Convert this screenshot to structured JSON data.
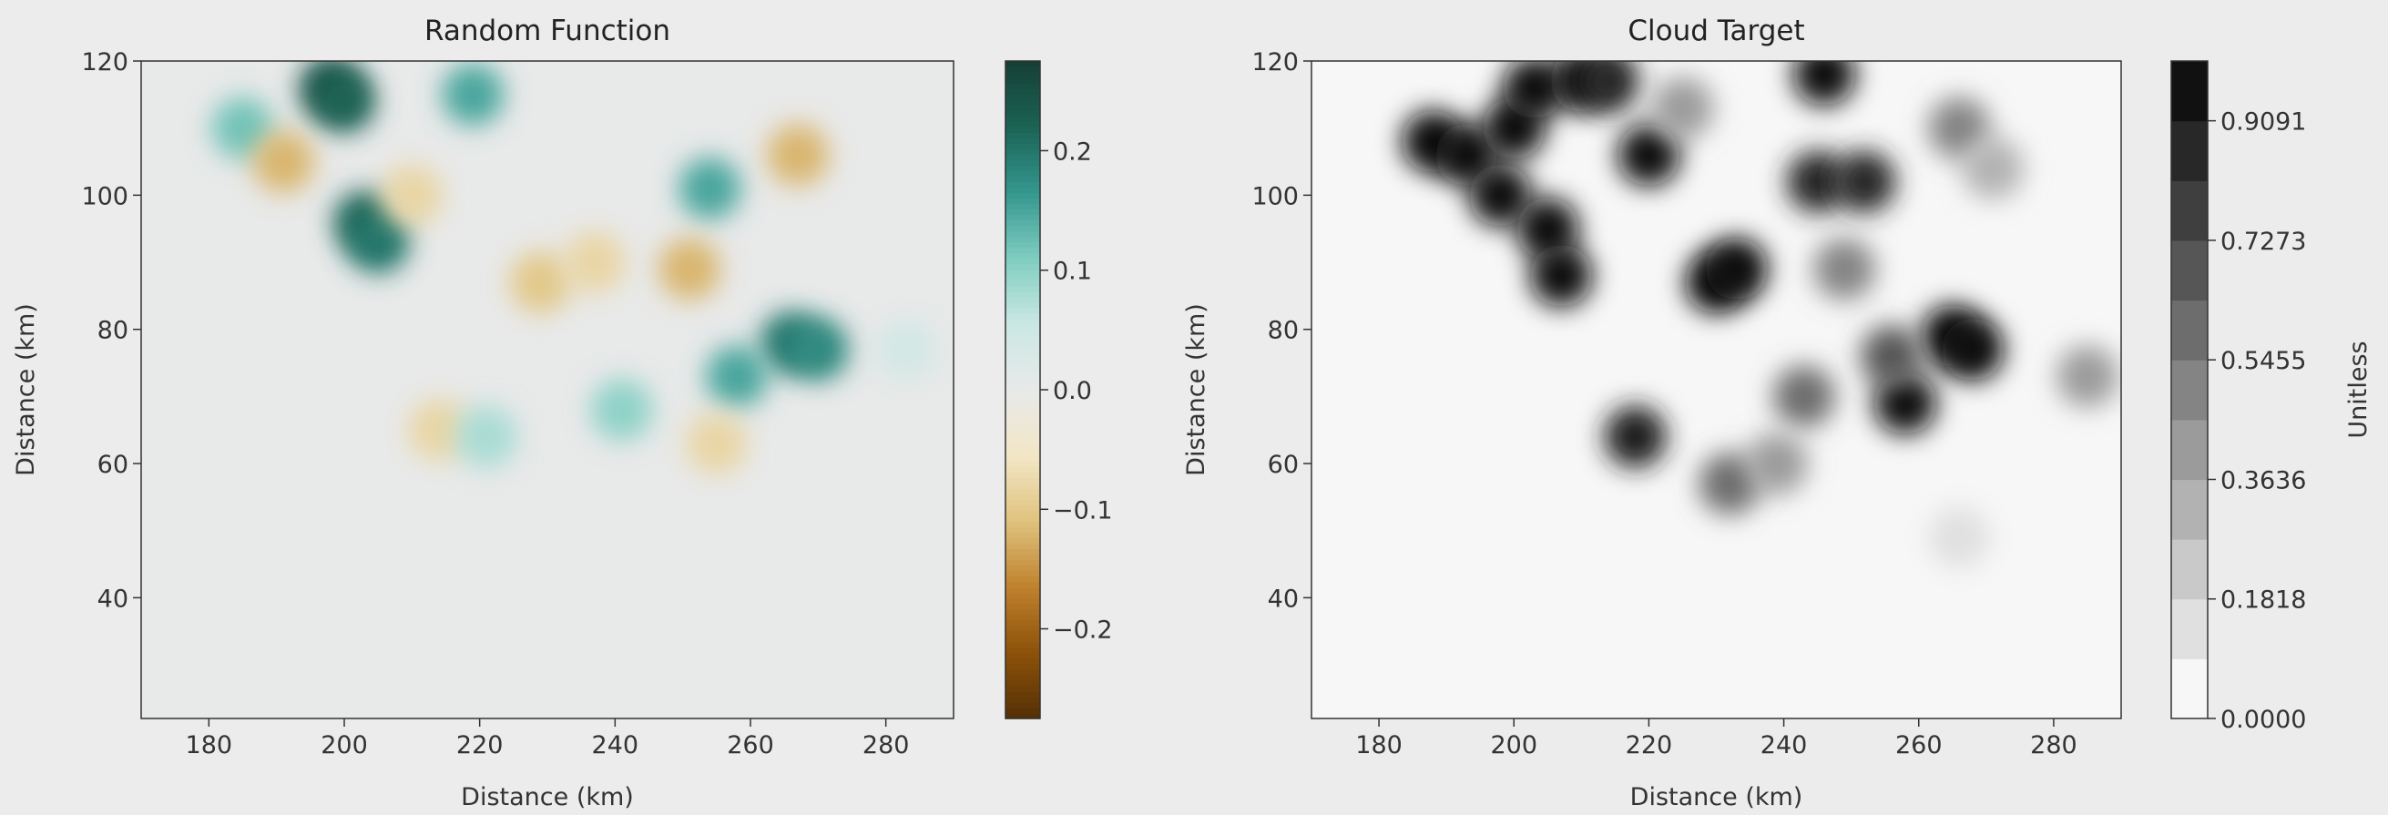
{
  "chart_data": [
    {
      "type": "heatmap",
      "title": "Random Function",
      "xlabel": "Distance (km)",
      "ylabel": "Distance (km)",
      "xlim": [
        170,
        290
      ],
      "ylim": [
        22,
        120
      ],
      "xticks": [
        180,
        200,
        220,
        240,
        260,
        280
      ],
      "yticks": [
        40,
        60,
        80,
        100,
        120
      ],
      "colormap": "BrBG",
      "colorbar": {
        "clim": [
          -0.275,
          0.275
        ],
        "ticks": [
          {
            "value": -0.2,
            "label": "−0.2"
          },
          {
            "value": -0.1,
            "label": "−0.1"
          },
          {
            "value": 0,
            "label": "0.0"
          },
          0.1,
          0.2
        ]
      },
      "points": {
        "x": [
          198,
          200,
          185,
          219,
          203,
          205,
          191,
          210,
          254,
          267,
          229,
          237,
          251,
          266,
          270,
          258,
          214,
          221,
          241,
          255,
          283
        ],
        "y": [
          116,
          114,
          110,
          115,
          96,
          93,
          105,
          100,
          101,
          106,
          87,
          90,
          89,
          78,
          77,
          73,
          65,
          64,
          68,
          63,
          77
        ],
        "values": [
          0.25,
          0.22,
          0.12,
          0.15,
          0.22,
          0.2,
          -0.12,
          -0.08,
          0.15,
          -0.12,
          -0.1,
          -0.08,
          -0.12,
          0.2,
          0.18,
          0.15,
          -0.08,
          0.08,
          0.1,
          -0.08,
          0.04
        ]
      }
    },
    {
      "type": "heatmap",
      "title": "Cloud Target",
      "xlabel": "Distance (km)",
      "ylabel": "Distance (km)",
      "xlim": [
        170,
        290
      ],
      "ylim": [
        22,
        120
      ],
      "xticks": [
        180,
        200,
        220,
        240,
        260,
        280
      ],
      "yticks": [
        40,
        60,
        80,
        100,
        120
      ],
      "colormap": "Greys",
      "colorbar": {
        "label": "Unitless",
        "clim": [
          0,
          1
        ],
        "levels": 11,
        "ticks": [
          {
            "value": 0,
            "label": "0.0000"
          },
          0.1818,
          0.3636,
          0.5455,
          0.7273,
          0.9091
        ]
      },
      "points": {
        "x": [
          188,
          193,
          200,
          198,
          205,
          207,
          203,
          210,
          214,
          220,
          225,
          230,
          233,
          246,
          245,
          252,
          249,
          265,
          268,
          258,
          256,
          243,
          218,
          232,
          239,
          266,
          271,
          285,
          266
        ],
        "y": [
          108,
          106,
          110,
          100,
          95,
          88,
          116,
          117,
          117,
          106,
          113,
          87,
          89,
          118,
          102,
          102,
          89,
          79,
          77,
          69,
          76,
          70,
          64,
          57,
          60,
          110,
          104,
          73,
          49
        ],
        "values": [
          1.0,
          1.0,
          1.0,
          1.0,
          1.0,
          1.0,
          1.0,
          1.0,
          0.9,
          1.0,
          0.4,
          1.0,
          1.0,
          1.0,
          0.9,
          0.9,
          0.5,
          1.0,
          1.0,
          1.0,
          0.7,
          0.6,
          0.95,
          0.6,
          0.4,
          0.5,
          0.3,
          0.4,
          0.1
        ]
      }
    }
  ]
}
